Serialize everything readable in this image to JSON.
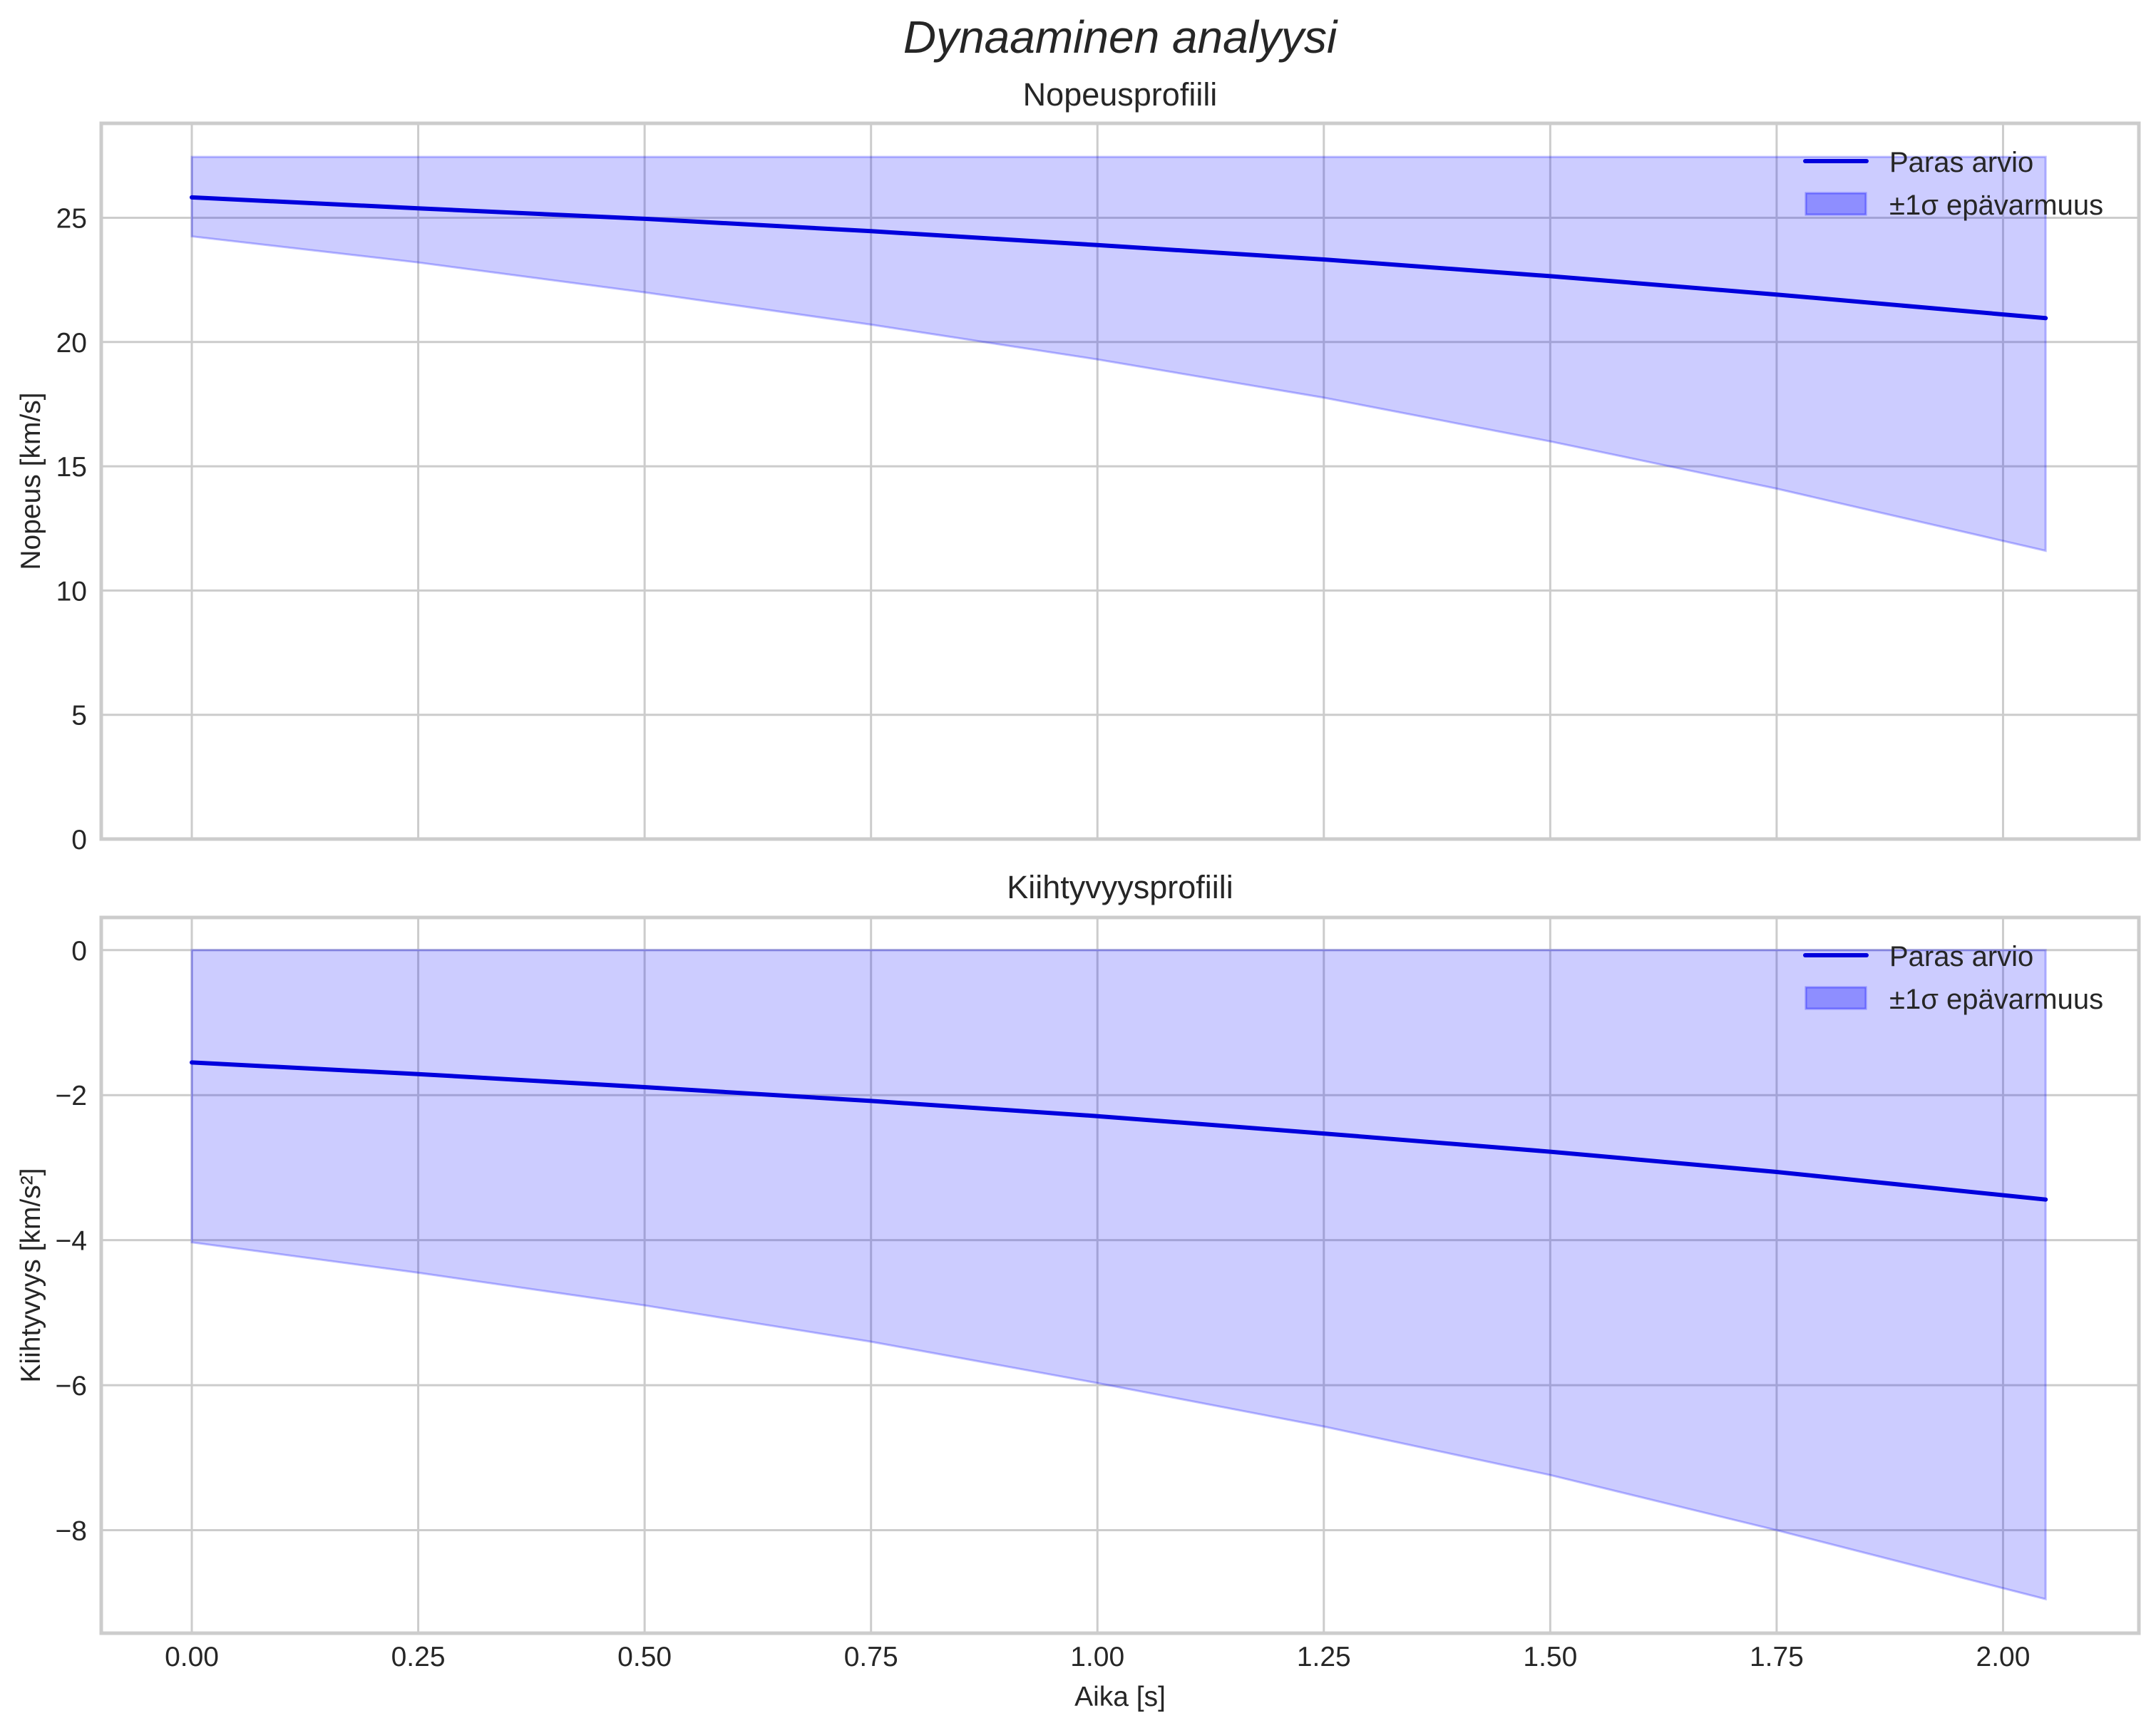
{
  "figure": {
    "suptitle": "Dynaaminen analyysi",
    "xlabel": "Aika [s]"
  },
  "colors": {
    "line": "#0000dd",
    "band_fill": "#0000ff",
    "band_alpha": 0.2,
    "grid": "#cccccc",
    "spine": "#cccccc",
    "text": "#262626",
    "background": "#ffffff"
  },
  "legend": {
    "line_label": "Paras arvio",
    "band_label": "±1σ epävarmuus",
    "position": "upper right"
  },
  "chart_data": [
    {
      "type": "line",
      "title": "Nopeusprofiili",
      "xlabel": "",
      "ylabel": "Nopeus [km/s]",
      "xlim": [
        -0.1,
        2.15
      ],
      "ylim": [
        0,
        28.8
      ],
      "xticks": [
        0.0,
        0.25,
        0.5,
        0.75,
        1.0,
        1.25,
        1.5,
        1.75,
        2.0
      ],
      "xtick_labels": [
        "0.00",
        "0.25",
        "0.50",
        "0.75",
        "1.00",
        "1.25",
        "1.50",
        "1.75",
        "2.00"
      ],
      "yticks": [
        0,
        5,
        10,
        15,
        20,
        25
      ],
      "ytick_labels": [
        "0",
        "5",
        "10",
        "15",
        "20",
        "25"
      ],
      "grid": true,
      "legend_position": "upper right",
      "x": [
        0.0,
        0.25,
        0.5,
        0.75,
        1.0,
        1.25,
        1.5,
        1.75,
        2.047
      ],
      "series": [
        {
          "name": "Paras arvio",
          "kind": "line",
          "values": [
            25.82,
            25.38,
            24.96,
            24.46,
            23.9,
            23.32,
            22.65,
            21.91,
            20.96
          ]
        },
        {
          "name": "±1σ epävarmuus",
          "kind": "band",
          "lower": [
            24.25,
            23.2,
            22.0,
            20.7,
            19.3,
            17.76,
            16.0,
            14.1,
            11.6
          ],
          "upper": [
            27.45,
            27.45,
            27.45,
            27.45,
            27.45,
            27.45,
            27.45,
            27.45,
            27.45
          ]
        }
      ]
    },
    {
      "type": "line",
      "title": "Kiihtyvyysprofiili",
      "xlabel": "Aika [s]",
      "ylabel": "Kiihtyvyys [km/s²]",
      "xlim": [
        -0.1,
        2.15
      ],
      "ylim": [
        -9.42,
        0.45
      ],
      "xticks": [
        0.0,
        0.25,
        0.5,
        0.75,
        1.0,
        1.25,
        1.5,
        1.75,
        2.0
      ],
      "xtick_labels": [
        "0.00",
        "0.25",
        "0.50",
        "0.75",
        "1.00",
        "1.25",
        "1.50",
        "1.75",
        "2.00"
      ],
      "yticks": [
        0,
        -2,
        -4,
        -6,
        -8
      ],
      "ytick_labels": [
        "0",
        "−2",
        "−4",
        "−6",
        "−8"
      ],
      "grid": true,
      "legend_position": "upper right",
      "x": [
        0.0,
        0.25,
        0.5,
        0.75,
        1.0,
        1.25,
        1.5,
        1.75,
        2.047
      ],
      "series": [
        {
          "name": "Paras arvio",
          "kind": "line",
          "values": [
            -1.55,
            -1.71,
            -1.89,
            -2.08,
            -2.29,
            -2.53,
            -2.78,
            -3.06,
            -3.44
          ]
        },
        {
          "name": "±1σ epävarmuus",
          "kind": "band",
          "lower": [
            -4.03,
            -4.45,
            -4.9,
            -5.4,
            -5.97,
            -6.57,
            -7.24,
            -8.0,
            -8.95
          ],
          "upper": [
            0,
            0,
            0,
            0,
            0,
            0,
            0,
            0,
            0
          ]
        }
      ]
    }
  ]
}
